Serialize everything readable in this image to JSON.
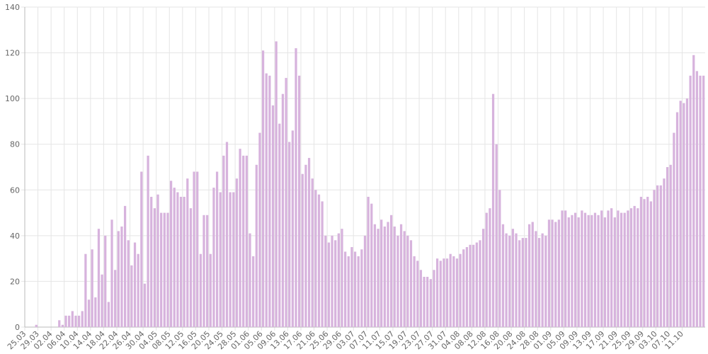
{
  "chart_data": {
    "type": "bar",
    "color": "#d7b3dd",
    "grid": true,
    "ylim": [
      0,
      140
    ],
    "yticks": [
      0,
      20,
      40,
      60,
      80,
      100,
      120,
      140
    ],
    "categories": [
      "25.03",
      null,
      null,
      null,
      "29.03",
      null,
      null,
      null,
      "02.04",
      null,
      null,
      null,
      "06.04",
      null,
      null,
      null,
      "10.04",
      null,
      null,
      null,
      "14.04",
      null,
      null,
      null,
      "18.04",
      null,
      null,
      null,
      "22.04",
      null,
      null,
      null,
      "26.04",
      null,
      null,
      null,
      "30.04",
      null,
      null,
      null,
      "04.05",
      null,
      null,
      null,
      "08.05",
      null,
      null,
      null,
      "12.05",
      null,
      null,
      null,
      "16.05",
      null,
      null,
      null,
      "20.05",
      null,
      null,
      null,
      "24.05",
      null,
      null,
      null,
      "28.05",
      null,
      null,
      null,
      "01.06",
      null,
      null,
      null,
      "05.06",
      null,
      null,
      null,
      "09.06",
      null,
      null,
      null,
      "13.06",
      null,
      null,
      null,
      "17.06",
      null,
      null,
      null,
      "21.06",
      null,
      null,
      null,
      "25.06",
      null,
      null,
      null,
      "29.06",
      null,
      null,
      null,
      "03.07",
      null,
      null,
      null,
      "07.07",
      null,
      null,
      null,
      "11.07",
      null,
      null,
      null,
      "15.07",
      null,
      null,
      null,
      "19.07",
      null,
      null,
      null,
      "23.07",
      null,
      null,
      null,
      "27.07",
      null,
      null,
      null,
      "31.07",
      null,
      null,
      null,
      "04.08",
      null,
      null,
      null,
      "08.08",
      null,
      null,
      null,
      "12.08",
      null,
      null,
      null,
      "16.08",
      null,
      null,
      null,
      "20.08",
      null,
      null,
      null,
      "24.08",
      null,
      null,
      null,
      "28.08",
      null,
      null,
      null,
      "01.09",
      null,
      null,
      null,
      "05.09",
      null,
      null,
      null,
      "09.09",
      null,
      null,
      null,
      "13.09",
      null,
      null,
      null,
      "17.09",
      null,
      null,
      null,
      "21.09",
      null,
      null,
      null,
      "25.09",
      null,
      null,
      null,
      "29.09",
      null,
      null,
      null,
      "03.10",
      null,
      null,
      null,
      "07.10",
      null,
      null,
      null,
      "11.10",
      null,
      null,
      null,
      null,
      null,
      null
    ],
    "values": [
      0,
      0,
      0,
      1,
      0,
      0,
      0,
      0,
      0,
      0,
      3,
      1,
      5,
      5,
      7,
      5,
      5,
      7,
      32,
      12,
      34,
      13,
      43,
      23,
      40,
      11,
      47,
      25,
      42,
      44,
      53,
      38,
      27,
      37,
      32,
      68,
      19,
      75,
      57,
      52,
      58,
      50,
      50,
      50,
      64,
      61,
      59,
      57,
      57,
      65,
      52,
      68,
      68,
      32,
      49,
      49,
      32,
      61,
      68,
      59,
      75,
      81,
      59,
      59,
      65,
      78,
      75,
      75,
      41,
      31,
      71,
      85,
      121,
      111,
      110,
      97,
      125,
      89,
      102,
      109,
      81,
      86,
      122,
      110,
      67,
      71,
      74,
      65,
      60,
      58,
      55,
      40,
      37,
      40,
      38,
      41,
      43,
      33,
      31,
      35,
      33,
      31,
      34,
      40,
      57,
      54,
      45,
      43,
      47,
      44,
      46,
      49,
      44,
      40,
      45,
      42,
      40,
      38,
      31,
      29,
      25,
      22,
      22,
      21,
      25,
      30,
      29,
      30,
      30,
      32,
      31,
      30,
      32,
      34,
      35,
      36,
      36,
      37,
      38,
      43,
      50,
      52,
      102,
      80,
      60,
      45,
      41,
      40,
      43,
      41,
      38,
      39,
      39,
      45,
      46,
      42,
      39,
      41,
      40,
      47,
      47,
      46,
      47,
      51,
      51,
      48,
      49,
      50,
      48,
      51,
      50,
      49,
      49,
      50,
      49,
      51,
      48,
      51,
      52,
      48,
      51,
      50,
      50,
      51,
      52,
      53,
      52,
      57,
      56,
      57,
      55,
      60,
      62,
      62,
      65,
      70,
      71,
      85,
      94,
      99,
      98,
      100,
      110,
      119,
      112,
      110,
      110
    ]
  }
}
